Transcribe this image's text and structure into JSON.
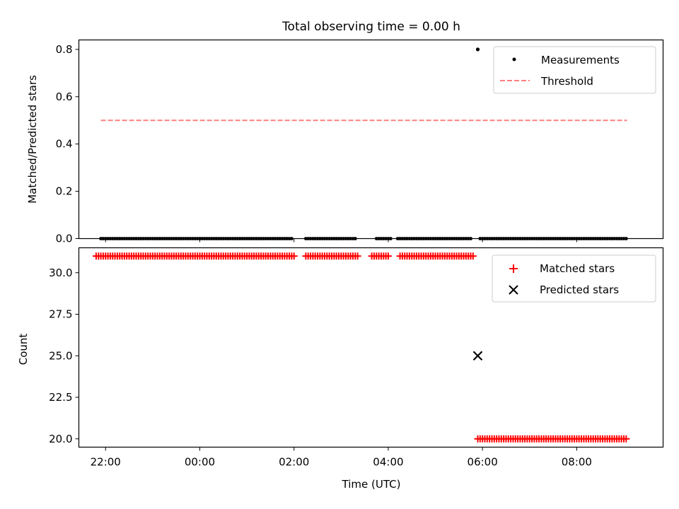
{
  "title": "Total observing time = 0.00 h",
  "chart_data": [
    {
      "type": "scatter",
      "title": "Total observing time = 0.00 h",
      "xlabel": "",
      "ylabel": "Matched/Predicted stars",
      "xlim": [
        "21:26",
        "09:50"
      ],
      "ylim": [
        0,
        0.84
      ],
      "yticks": [
        "0.0",
        "0.2",
        "0.4",
        "0.6",
        "0.8"
      ],
      "grid": false,
      "legend_position": "top-right",
      "series": [
        {
          "name": "Measurements",
          "kind": "scatter",
          "marker": "dot",
          "color": "#000000",
          "x_start": "21:54",
          "x_end": "09:04",
          "gaps": [
            [
              "02:00",
              "02:12"
            ],
            [
              "03:20",
              "03:42"
            ],
            [
              "04:04",
              "04:10"
            ],
            [
              "05:48",
              "05:54"
            ]
          ],
          "value": 0.0,
          "extra_points": [
            {
              "x": "05:54",
              "y": 0.8
            }
          ]
        },
        {
          "name": "Threshold",
          "kind": "line",
          "style": "dashed",
          "color": "#ff7f7f",
          "x": [
            "21:54",
            "09:04"
          ],
          "y": [
            0.5,
            0.5
          ]
        }
      ]
    },
    {
      "type": "scatter",
      "xlabel": "Time (UTC)",
      "ylabel": "Count",
      "xlim": [
        "21:26",
        "09:50"
      ],
      "ylim": [
        19.5,
        31.5
      ],
      "xticks": [
        "22:00",
        "00:00",
        "02:00",
        "04:00",
        "06:00",
        "08:00"
      ],
      "yticks": [
        "20.0",
        "22.5",
        "25.0",
        "27.5",
        "30.0"
      ],
      "grid": false,
      "legend_position": "top-right",
      "series": [
        {
          "name": "Matched stars",
          "kind": "scatter",
          "marker": "plus",
          "color": "#ff0000",
          "segments": [
            {
              "x_start": "21:48",
              "x_end": "05:48",
              "value": 31,
              "gaps": [
                [
                  "02:03",
                  "02:12"
                ],
                [
                  "03:23",
                  "03:38"
                ],
                [
                  "04:02",
                  "04:12"
                ]
              ]
            },
            {
              "x_start": "05:54",
              "x_end": "09:04",
              "value": 20,
              "gaps": []
            }
          ]
        },
        {
          "name": "Predicted stars",
          "kind": "scatter",
          "marker": "x",
          "color": "#000000",
          "points": [
            {
              "x": "05:54",
              "y": 25
            }
          ]
        }
      ]
    }
  ]
}
